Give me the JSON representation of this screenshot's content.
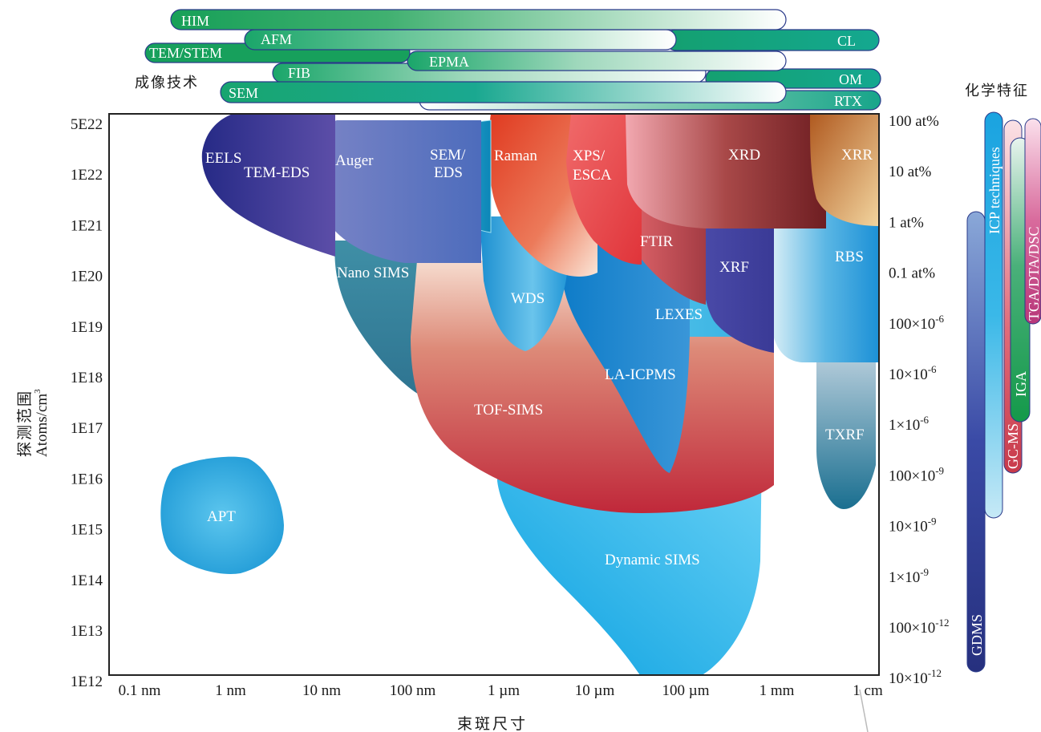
{
  "imaging": {
    "title": "成像技术",
    "bars": [
      "HIM",
      "AFM",
      "CL",
      "TEM/STEM",
      "EPMA",
      "FIB",
      "OM",
      "SEM",
      "RTX"
    ]
  },
  "chemical": {
    "title": "化学特征",
    "bars": [
      "ICP techniques",
      "GC-MS",
      "IGA",
      "TGA/DTA/DSC",
      "GDMS"
    ]
  },
  "axes": {
    "xlabel": "束斑尺寸",
    "ylabel": "探测范围",
    "ylabel_unit": "Atoms/cm",
    "ylabel_unit_sup": "3",
    "x_ticks": [
      "0.1 nm",
      "1 nm",
      "10 nm",
      "100 nm",
      "1 µm",
      "10 µm",
      "100 µm",
      "1 mm",
      "1 cm"
    ],
    "y_ticks": [
      "5E22",
      "1E22",
      "1E21",
      "1E20",
      "1E19",
      "1E18",
      "1E17",
      "1E16",
      "1E15",
      "1E14",
      "1E13",
      "1E12"
    ],
    "y_right_ticks": [
      {
        "base": "100 at%",
        "sup": ""
      },
      {
        "base": "10 at%",
        "sup": ""
      },
      {
        "base": "1 at%",
        "sup": ""
      },
      {
        "base": "0.1 at%",
        "sup": ""
      },
      {
        "base": "100×10",
        "sup": "-6"
      },
      {
        "base": "10×10",
        "sup": "-6"
      },
      {
        "base": "1×10",
        "sup": "-6"
      },
      {
        "base": "100×10",
        "sup": "-9"
      },
      {
        "base": "10×10",
        "sup": "-9"
      },
      {
        "base": "1×10",
        "sup": "-9"
      },
      {
        "base": "100×10",
        "sup": "-12"
      },
      {
        "base": "10×10",
        "sup": "-12"
      }
    ]
  },
  "regions": {
    "eels": "EELS",
    "tem_eds": "TEM-EDS",
    "auger": "Auger",
    "sem_eds_1": "SEM/",
    "sem_eds_2": "EDS",
    "raman": "Raman",
    "xps_1": "XPS/",
    "xps_2": "ESCA",
    "xrd": "XRD",
    "xrr": "XRR",
    "ftir": "FTIR",
    "xrf": "XRF",
    "rbs": "RBS",
    "nano_sims": "Nano SIMS",
    "wds": "WDS",
    "lexes": "LEXES",
    "la_icpms": "LA-ICPMS",
    "tof_sims": "TOF-SIMS",
    "txrf": "TXRF",
    "apt": "APT",
    "dynamic_sims": "Dynamic SIMS"
  },
  "colors": {
    "green_bar": "#1a9a5a",
    "bar_outline": "#2a3a8a",
    "eels": "#2d2f8f",
    "auger": "#5a6fbf",
    "raman": "#e8502a",
    "xrd": "#8a2a2a",
    "tof_sims": "#c8403e",
    "dynamic_sims": "#2ab4e8",
    "apt": "#38aee0",
    "nano_sims": "#3a85a0"
  }
}
